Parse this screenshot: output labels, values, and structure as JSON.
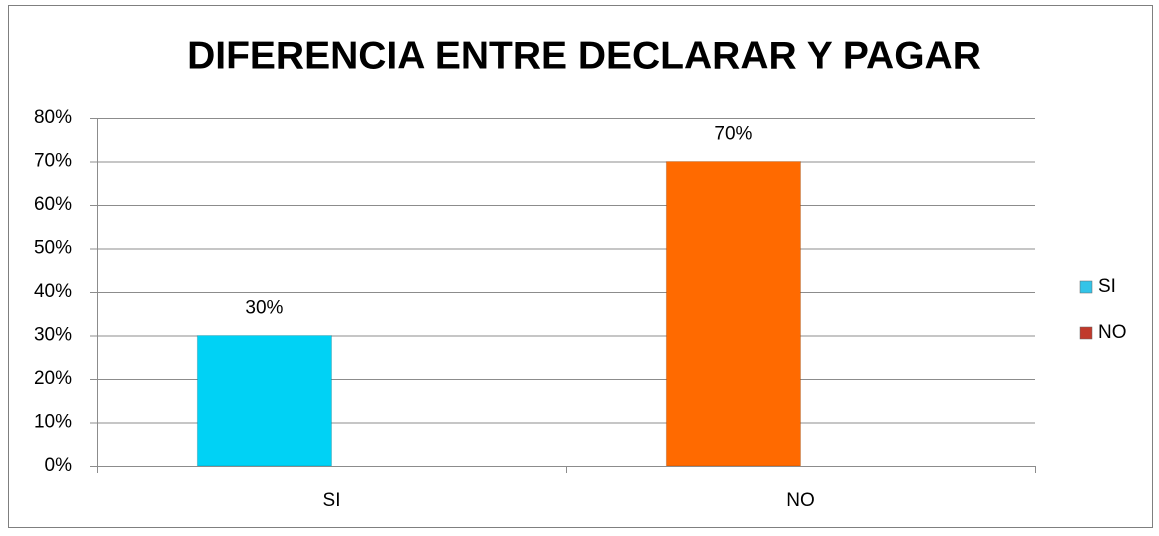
{
  "chart_data": {
    "type": "bar",
    "title": "DIFERENCIA ENTRE DECLARAR Y PAGAR",
    "categories": [
      "SI",
      "NO"
    ],
    "values": [
      30,
      70
    ],
    "value_labels": [
      "30%",
      "70%"
    ],
    "colors": [
      "#00d2f5",
      "#ff6a00"
    ],
    "legend_colors": [
      "#33c4e8",
      "#c0392b"
    ],
    "ylim": [
      0,
      80
    ],
    "yticks": [
      {
        "value": 0,
        "label": "0%"
      },
      {
        "value": 10,
        "label": "10%"
      },
      {
        "value": 20,
        "label": "20%"
      },
      {
        "value": 30,
        "label": "30%"
      },
      {
        "value": 40,
        "label": "40%"
      },
      {
        "value": 50,
        "label": "50%"
      },
      {
        "value": 60,
        "label": "60%"
      },
      {
        "value": 70,
        "label": "70%"
      },
      {
        "value": 80,
        "label": "80%"
      }
    ],
    "grid": true,
    "legend": "right"
  }
}
